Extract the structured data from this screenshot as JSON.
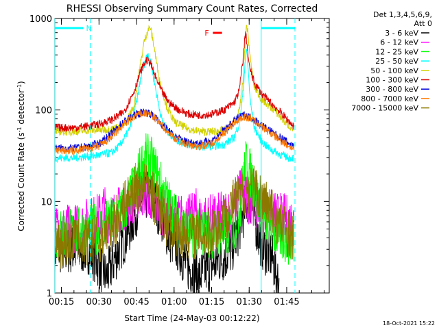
{
  "chart_data": {
    "type": "line",
    "title": "RHESSI Observing Summary Count Rates, Corrected",
    "xlabel": "Start Time (24-May-03 00:12:22)",
    "ylabel": "Corrected Count Rate (s^-1 detector^-1)",
    "ylabel_main": "Corrected Count Rate (s",
    "ylabel_sup1": "-1",
    "ylabel_mid": " detector",
    "ylabel_sup2": "-1",
    "ylabel_end": ")",
    "yscale": "log",
    "ylim": [
      1,
      1000
    ],
    "xlim_minutes": [
      12.37,
      122.0
    ],
    "x_ticks": [
      {
        "label": "00:15",
        "m": 15
      },
      {
        "label": "00:30",
        "m": 30
      },
      {
        "label": "00:45",
        "m": 45
      },
      {
        "label": "01:00",
        "m": 60
      },
      {
        "label": "01:15",
        "m": 75
      },
      {
        "label": "01:30",
        "m": 90
      },
      {
        "label": "01:45",
        "m": 105
      }
    ],
    "y_ticks": [
      {
        "label": "1000",
        "v": 1000
      },
      {
        "label": "100",
        "v": 100
      },
      {
        "label": "10",
        "v": 10
      },
      {
        "label": "1",
        "v": 1
      }
    ],
    "legend_header": [
      "Det 1,3,4,5,6,9,",
      "Att 0"
    ],
    "legend_placement": "right",
    "series": [
      {
        "name": "3 - 6 keV",
        "color": "#000000",
        "x": [
          12.4,
          20,
          26,
          28,
          33,
          38,
          42,
          45,
          48,
          50,
          52,
          55,
          58,
          62,
          65,
          70,
          75,
          80,
          83,
          86,
          88,
          89.5,
          91,
          92,
          94,
          96,
          99,
          102
        ],
        "y": [
          3,
          3,
          3,
          2.5,
          1.5,
          3,
          5,
          8,
          11,
          12,
          10,
          7,
          4,
          3,
          2,
          1.5,
          2,
          2.5,
          3,
          5,
          8,
          11,
          10,
          7,
          4,
          3,
          2.5,
          1.2
        ]
      },
      {
        "name": "6 - 12 keV",
        "color": "#ff00ff",
        "x": [
          12.4,
          20,
          26,
          29,
          31,
          32,
          33,
          36,
          40,
          44,
          48,
          50,
          52,
          56,
          60,
          64,
          67,
          68.5,
          69.5,
          72,
          76,
          80,
          84,
          87,
          89,
          91,
          93,
          96,
          100,
          104,
          108
        ],
        "y": [
          5,
          5,
          6,
          6.5,
          7,
          9,
          6.5,
          7,
          9,
          11,
          13,
          12,
          10,
          7.5,
          6.5,
          6.5,
          6.5,
          8,
          6.5,
          6.5,
          6.5,
          7,
          8,
          15,
          10,
          11,
          9,
          8,
          7,
          6.5,
          6
        ]
      },
      {
        "name": "12 - 25 keV",
        "color": "#00ff00",
        "x": [
          12.4,
          20,
          26,
          30,
          35,
          40,
          44,
          47,
          49,
          51,
          53,
          56,
          60,
          64,
          68,
          72,
          76,
          80,
          84,
          86,
          88,
          89,
          90,
          92,
          94,
          96,
          100,
          104,
          108
        ],
        "y": [
          4.5,
          4.5,
          5,
          5,
          6,
          8,
          14,
          25,
          30,
          27,
          20,
          12,
          7,
          5,
          4.5,
          4.5,
          4.5,
          4.5,
          5,
          8,
          20,
          28,
          22,
          15,
          9,
          6,
          4.5,
          4,
          3.5
        ]
      },
      {
        "name": "25 - 50 keV",
        "color": "#00ffff",
        "x": [
          12.4,
          20,
          25,
          30,
          35,
          38,
          42,
          45,
          47,
          48.5,
          49.5,
          51,
          53,
          55,
          58,
          62,
          66,
          70,
          75,
          80,
          84,
          86,
          87.5,
          88.5,
          89,
          89.5,
          90.5,
          92,
          95,
          98,
          102,
          106,
          108
        ],
        "y": [
          30,
          30,
          31,
          32,
          34,
          40,
          60,
          120,
          250,
          350,
          420,
          300,
          150,
          80,
          55,
          45,
          42,
          40,
          40,
          42,
          50,
          70,
          150,
          380,
          450,
          300,
          120,
          65,
          45,
          38,
          33,
          30,
          30
        ]
      },
      {
        "name": "50 - 100 keV",
        "color": "#d2d200",
        "x": [
          12.4,
          20,
          26,
          30,
          35,
          40,
          44,
          46,
          48,
          49.5,
          50.5,
          52,
          54,
          57,
          60,
          65,
          70,
          75,
          80,
          84,
          86,
          87.5,
          88.5,
          89,
          89.5,
          90.5,
          92,
          95,
          100,
          104,
          108
        ],
        "y": [
          58,
          58,
          60,
          60,
          62,
          68,
          110,
          250,
          550,
          750,
          800,
          500,
          220,
          110,
          75,
          63,
          58,
          58,
          60,
          70,
          95,
          200,
          600,
          850,
          700,
          350,
          180,
          130,
          100,
          75,
          60
        ]
      },
      {
        "name": "100 - 300 keV",
        "color": "#dc0000",
        "x": [
          12.4,
          20,
          26,
          30,
          35,
          40,
          44,
          47,
          49,
          50.5,
          52,
          55,
          58,
          62,
          66,
          70,
          75,
          80,
          84,
          86,
          87.5,
          88.5,
          89,
          90,
          92,
          95,
          100,
          105,
          108
        ],
        "y": [
          64,
          64,
          67,
          70,
          78,
          95,
          160,
          280,
          350,
          330,
          250,
          160,
          120,
          100,
          90,
          88,
          90,
          100,
          120,
          160,
          350,
          700,
          580,
          300,
          200,
          150,
          110,
          80,
          65
        ]
      },
      {
        "name": "300 - 800 keV",
        "color": "#0000dc",
        "x": [
          12.4,
          20,
          26,
          30,
          35,
          40,
          45,
          48,
          50,
          52,
          55,
          60,
          65,
          70,
          75,
          80,
          85,
          88,
          91,
          95,
          100,
          105,
          108
        ],
        "y": [
          38,
          38,
          40,
          43,
          55,
          75,
          90,
          95,
          93,
          85,
          70,
          52,
          45,
          43,
          46,
          60,
          80,
          88,
          82,
          68,
          55,
          45,
          40
        ]
      },
      {
        "name": "800 - 7000 keV",
        "color": "#ff7800",
        "x": [
          12.4,
          20,
          26,
          30,
          35,
          40,
          45,
          48,
          50,
          52,
          55,
          60,
          65,
          70,
          75,
          80,
          85,
          88,
          91,
          95,
          100,
          105,
          108
        ],
        "y": [
          36,
          36,
          38,
          40,
          50,
          70,
          88,
          92,
          90,
          83,
          68,
          50,
          42,
          40,
          43,
          56,
          77,
          85,
          80,
          66,
          52,
          42,
          38
        ]
      },
      {
        "name": "7000 - 15000 keV",
        "color": "#8c7800",
        "x": [
          12.4,
          20,
          26,
          30,
          34,
          38,
          42,
          45,
          47,
          49,
          51,
          54,
          58,
          62,
          66,
          70,
          74,
          78,
          82,
          86,
          89,
          92,
          96,
          100,
          104,
          108
        ],
        "y": [
          3.5,
          3.5,
          3.5,
          4,
          5,
          7,
          11,
          14,
          15,
          14.5,
          12,
          8.5,
          5.5,
          4.5,
          4.5,
          4.5,
          4.5,
          5.5,
          8,
          12,
          14,
          13.5,
          10,
          7,
          5,
          4
        ]
      }
    ],
    "annotations": {
      "n_label": "N",
      "n_bar_minutes": [
        12.4,
        26.5
      ],
      "n_dash_minutes": 26.5,
      "n_dash_color": "#00ffff",
      "f_label": "F",
      "f_bar_minutes": [
        75.5,
        77.5
      ],
      "f_color": "#ff0000",
      "bar_right_minutes": [
        94.8,
        108.3
      ],
      "right_solid_minutes": 94.8,
      "right_dash_minutes": 108.3,
      "left_solid_minutes": 12.4
    }
  },
  "timestamp": "18-Oct-2021 15:22"
}
